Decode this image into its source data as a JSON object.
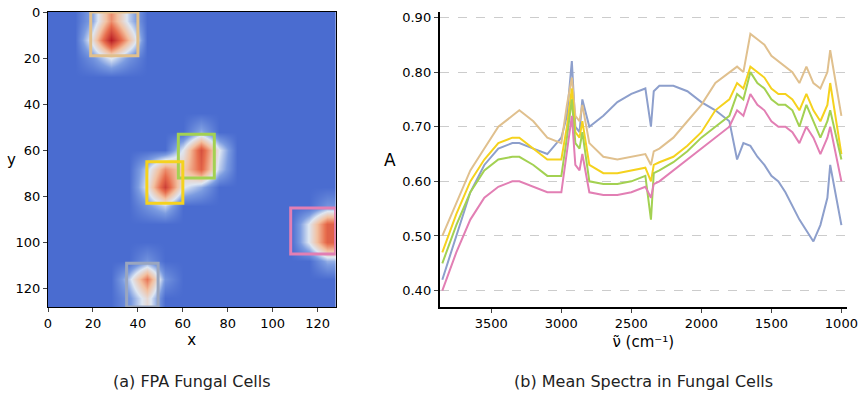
{
  "chart_data": [
    {
      "type": "heatmap",
      "title": "(a) FPA Fungal Cells",
      "x_label": "x",
      "y_label": "y",
      "x": [
        4,
        12,
        20,
        28,
        36,
        44,
        52,
        60,
        68,
        76,
        84,
        92,
        100,
        108,
        116,
        124
      ],
      "y": [
        4,
        12,
        20,
        28,
        36,
        44,
        52,
        60,
        68,
        76,
        84,
        92,
        100,
        108,
        116,
        124
      ],
      "z": [
        [
          0.2,
          0.2,
          0.35,
          0.7,
          0.4,
          0.2,
          0.2,
          0.2,
          0.2,
          0.2,
          0.2,
          0.2,
          0.2,
          0.2,
          0.2,
          0.2
        ],
        [
          0.2,
          0.2,
          0.5,
          1.0,
          0.6,
          0.2,
          0.2,
          0.2,
          0.2,
          0.2,
          0.2,
          0.2,
          0.2,
          0.2,
          0.2,
          0.2
        ],
        [
          0.2,
          0.2,
          0.3,
          0.45,
          0.3,
          0.2,
          0.2,
          0.2,
          0.2,
          0.2,
          0.2,
          0.2,
          0.2,
          0.2,
          0.2,
          0.2
        ],
        [
          0.2,
          0.2,
          0.2,
          0.2,
          0.2,
          0.2,
          0.2,
          0.2,
          0.2,
          0.2,
          0.2,
          0.2,
          0.2,
          0.2,
          0.2,
          0.2
        ],
        [
          0.2,
          0.2,
          0.2,
          0.2,
          0.2,
          0.2,
          0.2,
          0.2,
          0.2,
          0.2,
          0.2,
          0.2,
          0.2,
          0.2,
          0.2,
          0.2
        ],
        [
          0.2,
          0.2,
          0.2,
          0.2,
          0.2,
          0.2,
          0.2,
          0.2,
          0.2,
          0.2,
          0.2,
          0.2,
          0.2,
          0.2,
          0.2,
          0.2
        ],
        [
          0.2,
          0.2,
          0.2,
          0.2,
          0.2,
          0.2,
          0.2,
          0.2,
          0.35,
          0.2,
          0.2,
          0.2,
          0.2,
          0.2,
          0.2,
          0.2
        ],
        [
          0.2,
          0.2,
          0.2,
          0.2,
          0.2,
          0.2,
          0.2,
          0.45,
          0.85,
          0.45,
          0.2,
          0.2,
          0.2,
          0.2,
          0.2,
          0.2
        ],
        [
          0.2,
          0.2,
          0.2,
          0.2,
          0.2,
          0.4,
          0.7,
          0.55,
          0.8,
          0.4,
          0.2,
          0.2,
          0.2,
          0.2,
          0.2,
          0.2
        ],
        [
          0.2,
          0.2,
          0.2,
          0.2,
          0.2,
          0.45,
          0.9,
          0.45,
          0.35,
          0.2,
          0.2,
          0.2,
          0.2,
          0.2,
          0.2,
          0.2
        ],
        [
          0.2,
          0.2,
          0.2,
          0.2,
          0.2,
          0.3,
          0.4,
          0.2,
          0.2,
          0.2,
          0.2,
          0.2,
          0.2,
          0.2,
          0.2,
          0.3
        ],
        [
          0.2,
          0.2,
          0.2,
          0.2,
          0.2,
          0.2,
          0.2,
          0.2,
          0.2,
          0.2,
          0.2,
          0.2,
          0.2,
          0.2,
          0.45,
          0.8
        ],
        [
          0.2,
          0.2,
          0.2,
          0.2,
          0.2,
          0.2,
          0.2,
          0.2,
          0.2,
          0.2,
          0.2,
          0.2,
          0.2,
          0.2,
          0.45,
          0.8
        ],
        [
          0.2,
          0.2,
          0.2,
          0.2,
          0.2,
          0.3,
          0.2,
          0.2,
          0.2,
          0.2,
          0.2,
          0.2,
          0.2,
          0.2,
          0.2,
          0.35
        ],
        [
          0.2,
          0.2,
          0.2,
          0.2,
          0.4,
          0.75,
          0.3,
          0.2,
          0.2,
          0.2,
          0.2,
          0.2,
          0.2,
          0.2,
          0.2,
          0.2
        ],
        [
          0.2,
          0.2,
          0.2,
          0.2,
          0.3,
          0.5,
          0.2,
          0.2,
          0.2,
          0.2,
          0.2,
          0.2,
          0.2,
          0.2,
          0.2,
          0.2
        ]
      ],
      "xlim": [
        0,
        128
      ],
      "ylim": [
        128,
        0
      ],
      "xticks": [
        0,
        20,
        40,
        60,
        80,
        100,
        120
      ],
      "yticks": [
        0,
        20,
        40,
        60,
        80,
        100,
        120
      ],
      "boxes": [
        {
          "color": "#e0c08e",
          "x": [
            19,
            40
          ],
          "y": [
            0,
            19
          ]
        },
        {
          "color": "#a3d152",
          "x": [
            58,
            74
          ],
          "y": [
            53,
            72
          ]
        },
        {
          "color": "#f5d21e",
          "x": [
            44,
            60
          ],
          "y": [
            65,
            83
          ]
        },
        {
          "color": "#e27fb4",
          "x": [
            108,
            128
          ],
          "y": [
            85,
            105
          ]
        },
        {
          "color": "#9aa6bf",
          "x": [
            35,
            49
          ],
          "y": [
            109,
            128
          ]
        }
      ]
    },
    {
      "type": "line",
      "title": "(b) Mean Spectra in Fungal Cells",
      "x_label": "ν̃ (cm⁻¹)",
      "y_label": "A",
      "x": [
        3850,
        3750,
        3650,
        3550,
        3450,
        3350,
        3300,
        3200,
        3100,
        3000,
        2960,
        2925,
        2900,
        2870,
        2850,
        2800,
        2700,
        2600,
        2500,
        2400,
        2360,
        2340,
        2300,
        2200,
        2100,
        2000,
        1900,
        1800,
        1745,
        1700,
        1650,
        1600,
        1550,
        1500,
        1450,
        1400,
        1350,
        1300,
        1250,
        1200,
        1150,
        1100,
        1080,
        1000
      ],
      "series": [
        {
          "color": "#8d9fcc",
          "values": [
            0.42,
            0.5,
            0.58,
            0.63,
            0.66,
            0.67,
            0.67,
            0.66,
            0.65,
            0.68,
            0.72,
            0.82,
            0.7,
            0.69,
            0.75,
            0.7,
            0.72,
            0.745,
            0.76,
            0.77,
            0.7,
            0.765,
            0.775,
            0.775,
            0.765,
            0.745,
            0.73,
            0.71,
            0.64,
            0.67,
            0.665,
            0.645,
            0.63,
            0.61,
            0.6,
            0.58,
            0.555,
            0.53,
            0.51,
            0.49,
            0.52,
            0.57,
            0.63,
            0.52
          ]
        },
        {
          "color": "#e0c08e",
          "values": [
            0.5,
            0.56,
            0.62,
            0.66,
            0.7,
            0.72,
            0.73,
            0.71,
            0.68,
            0.67,
            0.74,
            0.79,
            0.72,
            0.71,
            0.74,
            0.67,
            0.645,
            0.64,
            0.645,
            0.65,
            0.63,
            0.655,
            0.66,
            0.68,
            0.71,
            0.74,
            0.78,
            0.8,
            0.81,
            0.8,
            0.87,
            0.86,
            0.85,
            0.83,
            0.82,
            0.81,
            0.8,
            0.78,
            0.81,
            0.78,
            0.77,
            0.8,
            0.84,
            0.72
          ]
        },
        {
          "color": "#f5d21e",
          "values": [
            0.47,
            0.54,
            0.6,
            0.64,
            0.67,
            0.68,
            0.68,
            0.66,
            0.64,
            0.64,
            0.7,
            0.77,
            0.69,
            0.68,
            0.71,
            0.63,
            0.615,
            0.615,
            0.62,
            0.625,
            0.6,
            0.63,
            0.635,
            0.645,
            0.665,
            0.69,
            0.73,
            0.75,
            0.78,
            0.77,
            0.81,
            0.8,
            0.79,
            0.77,
            0.76,
            0.76,
            0.75,
            0.73,
            0.76,
            0.73,
            0.71,
            0.74,
            0.78,
            0.65
          ]
        },
        {
          "color": "#a3d152",
          "values": [
            0.45,
            0.52,
            0.58,
            0.62,
            0.64,
            0.645,
            0.645,
            0.63,
            0.61,
            0.61,
            0.68,
            0.75,
            0.67,
            0.66,
            0.69,
            0.6,
            0.595,
            0.595,
            0.6,
            0.61,
            0.53,
            0.615,
            0.62,
            0.635,
            0.655,
            0.68,
            0.7,
            0.72,
            0.76,
            0.75,
            0.8,
            0.78,
            0.77,
            0.75,
            0.74,
            0.74,
            0.73,
            0.7,
            0.74,
            0.71,
            0.68,
            0.71,
            0.73,
            0.64
          ]
        },
        {
          "color": "#e27fb4",
          "values": [
            0.4,
            0.47,
            0.53,
            0.57,
            0.59,
            0.6,
            0.6,
            0.59,
            0.58,
            0.58,
            0.65,
            0.72,
            0.63,
            0.62,
            0.65,
            0.58,
            0.575,
            0.575,
            0.58,
            0.59,
            0.57,
            0.595,
            0.6,
            0.62,
            0.64,
            0.66,
            0.68,
            0.7,
            0.73,
            0.72,
            0.76,
            0.74,
            0.73,
            0.71,
            0.7,
            0.7,
            0.69,
            0.67,
            0.7,
            0.68,
            0.65,
            0.68,
            0.7,
            0.6
          ]
        }
      ],
      "xlim": [
        3870,
        960
      ],
      "ylim": [
        0.37,
        0.91
      ],
      "xticks": [
        3500,
        3000,
        2500,
        2000,
        1500,
        1000
      ],
      "yticks": [
        {
          "value": 0.4,
          "label": "0.40"
        },
        {
          "value": 0.5,
          "label": "0.50"
        },
        {
          "value": 0.6,
          "label": "0.60"
        },
        {
          "value": 0.7,
          "label": "0.70"
        },
        {
          "value": 0.8,
          "label": "0.80"
        },
        {
          "value": 0.9,
          "label": "0.90"
        }
      ],
      "grid": true
    }
  ]
}
